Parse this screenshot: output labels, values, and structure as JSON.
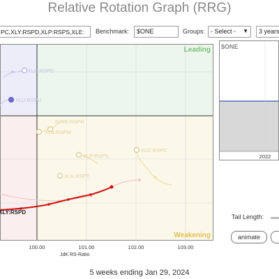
{
  "title": "Relative Rotation Graph (RRG)",
  "controls": {
    "symbols_value": "PC,XLY:RSPD,XLP:RSPS,XLE:",
    "benchmark_label": "Benchmark:",
    "benchmark_value": "$ONE",
    "groups_label": "Groups:",
    "groups_value": "- Select -",
    "range_value": "3 years"
  },
  "chart_data": {
    "type": "scatter",
    "quadrants": {
      "leading": "Leading",
      "weakening": "Weakening"
    },
    "xlabel": "JdK RS-Ratio",
    "x_ticks": [
      "100.00",
      "101.00",
      "102.00",
      "103.00"
    ],
    "series": [
      {
        "name": "XLE:RSPG",
        "color": "#b8b8e8",
        "faded": true
      },
      {
        "name": "XLU:RSPU",
        "color": "#b8b8e8",
        "faded": true
      },
      {
        "name": "XLRE:RSPR",
        "color": "#e8d8a0",
        "faded": true
      },
      {
        "name": "XLB:RSPM",
        "color": "#e8d8a0",
        "faded": true
      },
      {
        "name": "XLP:RSPS",
        "color": "#e8d8a0",
        "faded": true
      },
      {
        "name": "XLC:RSPC",
        "color": "#e8d8a0",
        "faded": true
      },
      {
        "name": "XLK:RSPT",
        "color": "#e8d8a0",
        "faded": true
      },
      {
        "name": "XLY:RSPD",
        "color": "#cc1111",
        "faded": false
      }
    ]
  },
  "benchmark_chart": {
    "name": "$ONE",
    "year_label": "2022",
    "line_color": "#3355aa"
  },
  "tail_length_label": "Tail Length:",
  "animate_label": "animate",
  "footer": "5 weeks ending Jan 29, 2024"
}
